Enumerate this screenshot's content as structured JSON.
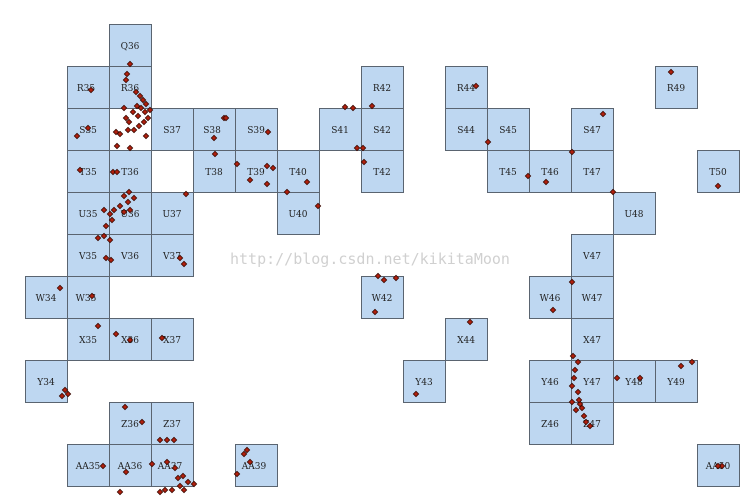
{
  "watermark": "http://blog.csdn.net/kikitaMoon",
  "colors": {
    "cell_fill": "#bed7f1",
    "cell_stroke": "#5a6470",
    "point_fill": "#b0200e",
    "point_stroke": "#3a0800"
  },
  "grid_labels": [
    "Q36",
    "R35",
    "R36",
    "R42",
    "R44",
    "R49",
    "S35",
    "S37",
    "S38",
    "S39",
    "S41",
    "S42",
    "S44",
    "S45",
    "S47",
    "T35",
    "T36",
    "T38",
    "T39",
    "T40",
    "T42",
    "T45",
    "T46",
    "T47",
    "T50",
    "U35",
    "U36",
    "U37",
    "U40",
    "U48",
    "V35",
    "V36",
    "V37",
    "V47",
    "W34",
    "W35",
    "W42",
    "W46",
    "W47",
    "X35",
    "X36",
    "X37",
    "X44",
    "X47",
    "Y34",
    "Y43",
    "Y46",
    "Y47",
    "Y48",
    "Y49",
    "Z36",
    "Z37",
    "Z46",
    "Z47",
    "AA35",
    "AA36",
    "AA37",
    "AA39",
    "AA50"
  ]
}
